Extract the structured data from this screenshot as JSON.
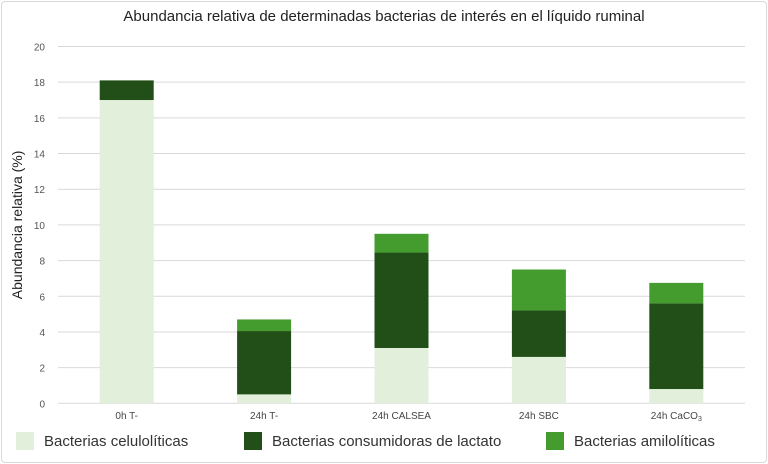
{
  "chart_data": {
    "type": "bar",
    "stacked": true,
    "title": "Abundancia relativa de determinadas bacterias de interés en el líquido ruminal",
    "xlabel": "",
    "ylabel": "Abundancia relativa (%)",
    "ylim": [
      0,
      20
    ],
    "yticks": [
      0,
      2,
      4,
      6,
      8,
      10,
      12,
      14,
      16,
      18,
      20
    ],
    "grid": true,
    "legend_position": "bottom",
    "categories": [
      "0h T-",
      "24h T-",
      "24h CALSEA",
      "24h SBC",
      "24h CaCO3"
    ],
    "series": [
      {
        "name": "Bacterias celulolíticas",
        "color": "#e2efda",
        "values": [
          17.0,
          0.5,
          3.1,
          2.6,
          0.8
        ]
      },
      {
        "name": "Bacterias consumidoras de lactato",
        "color": "#224f17",
        "values": [
          1.1,
          3.55,
          5.35,
          2.6,
          4.8
        ]
      },
      {
        "name": "Bacterias amilolíticas",
        "color": "#449c2f",
        "values": [
          0.0,
          0.65,
          1.05,
          2.3,
          1.15
        ]
      }
    ]
  }
}
